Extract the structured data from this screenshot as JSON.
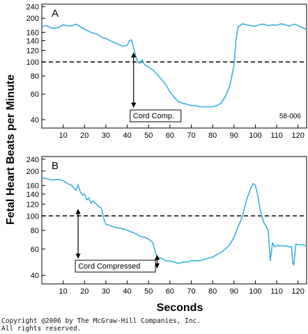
{
  "figure": {
    "ylabel": "Fetal Heart Beats per Minute",
    "xlabel": "Seconds",
    "copyright_line1": "Copyright @2006 by The McGraw-Hill Companies, Inc.",
    "copyright_line2": "All rights reserved."
  },
  "chart_data": [
    {
      "type": "line",
      "panel_label": "A",
      "figure_id": "58-006",
      "annotation": "Cord Comp.",
      "annotation_x": 43,
      "y_scale": "log",
      "ylim": [
        35,
        250
      ],
      "xlim": [
        0,
        124
      ],
      "x_ticks": [
        10,
        20,
        30,
        40,
        50,
        60,
        70,
        80,
        90,
        100,
        110,
        120
      ],
      "y_ticks": [
        40,
        60,
        80,
        100,
        120,
        140,
        160,
        200,
        240
      ],
      "reference_line": 100,
      "line_color": "#3bb0de",
      "series": [
        {
          "x": [
            0,
            2,
            5,
            8,
            10,
            13,
            16,
            20,
            23,
            26,
            28,
            30,
            32,
            34,
            36,
            38,
            40,
            41,
            42,
            43,
            44,
            45,
            46,
            47,
            48,
            50,
            52,
            54,
            56,
            58,
            60,
            62,
            64,
            66,
            68,
            70,
            72,
            74,
            76,
            78,
            80,
            82,
            84,
            86,
            88,
            90,
            91,
            92,
            94,
            96,
            98,
            100,
            102,
            104,
            106,
            108,
            110,
            112,
            114,
            116,
            118,
            120,
            122,
            124
          ],
          "y": [
            175,
            178,
            170,
            173,
            180,
            176,
            182,
            168,
            160,
            155,
            148,
            145,
            140,
            136,
            132,
            128,
            130,
            140,
            142,
            125,
            110,
            100,
            98,
            104,
            96,
            92,
            88,
            82,
            76,
            70,
            62,
            57,
            53,
            52,
            51,
            50,
            50,
            49,
            49,
            49,
            49,
            50,
            52,
            58,
            68,
            95,
            145,
            175,
            183,
            180,
            178,
            176,
            181,
            182,
            178,
            180,
            179,
            183,
            180,
            177,
            182,
            178,
            172,
            168
          ]
        }
      ]
    },
    {
      "type": "line",
      "panel_label": "B",
      "annotation": "Cord Compressed",
      "annotation_range": [
        17,
        54
      ],
      "y_scale": "log",
      "ylim": [
        35,
        250
      ],
      "xlim": [
        0,
        124
      ],
      "x_ticks": [
        10,
        20,
        30,
        40,
        50,
        60,
        70,
        80,
        90,
        100,
        110,
        120
      ],
      "y_ticks": [
        40,
        60,
        80,
        100,
        120,
        140,
        160,
        200,
        240
      ],
      "reference_line": 100,
      "line_color": "#3bb0de",
      "series": [
        {
          "x": [
            0,
            2,
            5,
            8,
            10,
            12,
            14,
            16,
            17,
            18,
            19,
            20,
            21,
            22,
            23,
            24,
            26,
            28,
            29,
            30,
            32,
            34,
            36,
            38,
            40,
            42,
            44,
            46,
            48,
            50,
            52,
            53,
            54,
            56,
            58,
            60,
            62,
            64,
            66,
            68,
            70,
            72,
            74,
            76,
            78,
            80,
            82,
            84,
            86,
            88,
            90,
            92,
            94,
            96,
            98,
            99,
            100,
            101,
            102,
            103,
            104,
            105,
            106,
            106.5,
            107,
            108,
            109,
            110,
            110.5,
            111,
            112,
            114,
            116,
            117,
            117.5,
            118,
            119,
            120,
            122,
            124
          ],
          "y": [
            180,
            178,
            174,
            176,
            172,
            165,
            160,
            148,
            162,
            145,
            138,
            140,
            128,
            132,
            122,
            126,
            118,
            112,
            96,
            88,
            86,
            84,
            83,
            82,
            80,
            78,
            76,
            73,
            72,
            70,
            66,
            58,
            53,
            52,
            50,
            50,
            49,
            48,
            49,
            49,
            50,
            50,
            50,
            51,
            52,
            53,
            55,
            57,
            60,
            64,
            72,
            85,
            100,
            130,
            155,
            165,
            160,
            140,
            115,
            100,
            90,
            85,
            80,
            64,
            50,
            66,
            62,
            63,
            64,
            63,
            63,
            63,
            62,
            62,
            48,
            47,
            65,
            64,
            64,
            63
          ]
        }
      ]
    }
  ]
}
